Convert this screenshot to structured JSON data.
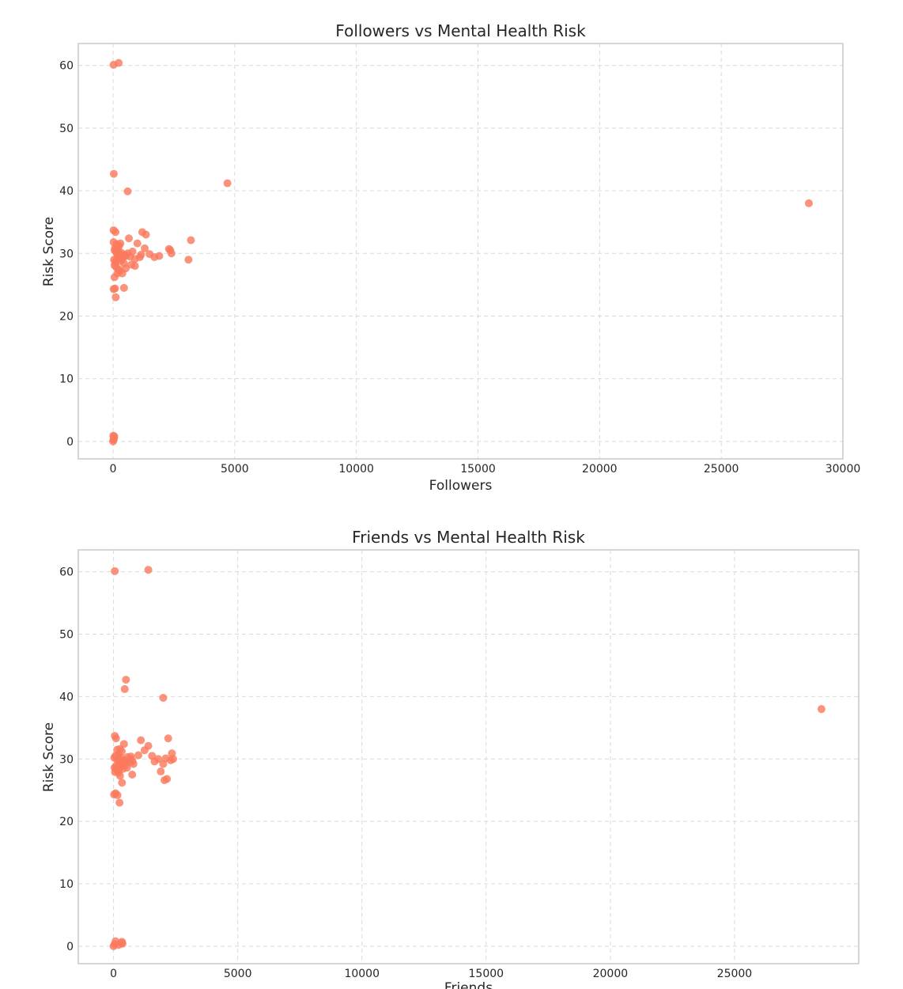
{
  "chart_data": [
    {
      "type": "scatter",
      "title": "Followers vs Mental Health Risk",
      "xlabel": "Followers",
      "ylabel": "Risk Score",
      "xlim": [
        -1430,
        30000
      ],
      "ylim": [
        -2.8,
        63.5
      ],
      "xticks": [
        0,
        5000,
        10000,
        15000,
        20000,
        25000,
        30000
      ],
      "yticks": [
        0,
        10,
        20,
        30,
        40,
        50,
        60
      ],
      "xtick_labels": [
        "0",
        "5000",
        "10000",
        "15000",
        "20000",
        "25000",
        "30000"
      ],
      "ytick_labels": [
        "0",
        "10",
        "20",
        "30",
        "40",
        "50",
        "60"
      ],
      "grid": true,
      "marker_color": "#fa7a5e",
      "x": [
        20,
        230,
        30,
        600,
        4700,
        28600,
        20,
        100,
        150,
        200,
        250,
        300,
        20,
        60,
        120,
        180,
        260,
        340,
        420,
        500,
        40,
        90,
        140,
        220,
        320,
        450,
        60,
        130,
        210,
        280,
        380,
        520,
        600,
        700,
        800,
        900,
        1000,
        1150,
        1300,
        1500,
        1700,
        1900,
        1200,
        1350,
        2300,
        2400,
        3200,
        3100,
        2350,
        650,
        750,
        900,
        1100,
        60,
        180,
        80,
        450,
        20,
        110,
        350,
        520,
        80,
        160,
        240,
        0,
        20,
        40,
        10,
        30,
        50
      ],
      "y": [
        60.1,
        60.4,
        42.7,
        39.9,
        41.2,
        38.0,
        33.7,
        33.4,
        31.5,
        30.8,
        31.2,
        31.6,
        31.8,
        30.5,
        30.2,
        29.7,
        29.9,
        30.1,
        29.4,
        29.8,
        29.0,
        28.6,
        28.9,
        29.3,
        28.8,
        28.4,
        28.1,
        27.8,
        27.5,
        27.2,
        26.8,
        27.6,
        30.0,
        29.5,
        30.3,
        29.1,
        31.6,
        29.8,
        30.8,
        29.9,
        29.4,
        29.6,
        33.4,
        33.0,
        30.7,
        30.0,
        32.1,
        29.0,
        30.5,
        32.4,
        28.2,
        28.0,
        29.4,
        26.2,
        26.8,
        24.4,
        24.5,
        24.3,
        23.0,
        29.2,
        29.6,
        30.9,
        30.4,
        30.1,
        0.0,
        0.3,
        0.6,
        0.9,
        0.4,
        0.8
      ]
    },
    {
      "type": "scatter",
      "title": "Friends vs Mental Health Risk",
      "xlabel": "Friends",
      "ylabel": "Risk Score",
      "xlim": [
        -1420,
        30000
      ],
      "ylim": [
        -2.8,
        63.5
      ],
      "xticks": [
        0,
        5000,
        10000,
        15000,
        20000,
        25000
      ],
      "yticks": [
        0,
        10,
        20,
        30,
        40,
        50,
        60
      ],
      "xtick_labels": [
        "0",
        "5000",
        "10000",
        "15000",
        "20000",
        "25000"
      ],
      "ytick_labels": [
        "0",
        "10",
        "20",
        "30",
        "40",
        "50",
        "60"
      ],
      "grid": true,
      "marker_color": "#fa7a5e",
      "x": [
        50,
        1400,
        500,
        450,
        2000,
        28500,
        50,
        100,
        150,
        200,
        260,
        330,
        30,
        80,
        140,
        190,
        250,
        320,
        400,
        480,
        560,
        640,
        700,
        760,
        40,
        100,
        160,
        240,
        300,
        380,
        460,
        540,
        620,
        700,
        800,
        1000,
        1100,
        1250,
        1400,
        1550,
        1650,
        1800,
        1900,
        2050,
        2150,
        2200,
        2350,
        2400,
        2300,
        2000,
        2100,
        60,
        120,
        200,
        260,
        340,
        420,
        750,
        380,
        20,
        80,
        160,
        240,
        300,
        400,
        0,
        40,
        80,
        200,
        300,
        340,
        360
      ],
      "y": [
        60.1,
        60.3,
        42.7,
        41.2,
        39.8,
        38.0,
        33.7,
        33.3,
        31.5,
        30.8,
        31.6,
        31.2,
        30.2,
        30.5,
        29.9,
        30.4,
        29.6,
        30.1,
        29.3,
        29.8,
        30.3,
        29.5,
        30.0,
        29.7,
        28.6,
        28.9,
        28.2,
        29.1,
        28.7,
        28.4,
        29.0,
        28.6,
        29.8,
        30.4,
        29.2,
        30.6,
        33.0,
        31.4,
        32.1,
        30.5,
        29.6,
        30.0,
        28.0,
        26.6,
        26.8,
        33.3,
        30.9,
        30.0,
        29.8,
        29.2,
        30.1,
        27.9,
        28.4,
        27.8,
        27.3,
        26.2,
        32.4,
        27.5,
        29.3,
        24.3,
        24.5,
        24.2,
        23.0,
        29.0,
        29.7,
        0.0,
        0.3,
        0.8,
        0.2,
        0.5,
        0.7,
        0.4
      ]
    }
  ]
}
